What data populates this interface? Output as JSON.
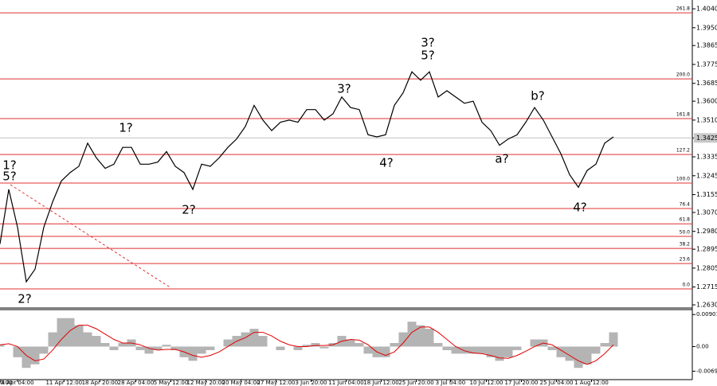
{
  "chart_data": [
    {
      "type": "line",
      "color": "#000000",
      "values": [
        1.292,
        1.318,
        1.3,
        1.274,
        1.28,
        1.3,
        1.312,
        1.322,
        1.326,
        1.329,
        1.34,
        1.333,
        1.328,
        1.33,
        1.338,
        1.338,
        1.33,
        1.33,
        1.331,
        1.336,
        1.329,
        1.326,
        1.318,
        1.33,
        1.329,
        1.333,
        1.338,
        1.342,
        1.348,
        1.358,
        1.351,
        1.346,
        1.35,
        1.351,
        1.35,
        1.356,
        1.356,
        1.351,
        1.354,
        1.362,
        1.357,
        1.356,
        1.344,
        1.343,
        1.344,
        1.358,
        1.364,
        1.374,
        1.37,
        1.374,
        1.362,
        1.365,
        1.362,
        1.359,
        1.36,
        1.35,
        1.346,
        1.339,
        1.342,
        1.344,
        1.35,
        1.357,
        1.351,
        1.343,
        1.335,
        1.325,
        1.319,
        1.327,
        1.33,
        1.34,
        1.343
      ],
      "xlim": [
        0,
        79
      ],
      "ylim": [
        1.2615,
        1.4063
      ],
      "yticks": [
        {
          "value": 1.263,
          "label": "1.2630"
        },
        1.2715,
        1.2805,
        1.2895,
        {
          "value": 1.298,
          "label": "1.2980"
        },
        {
          "value": 1.307,
          "label": "1.3070"
        },
        1.3155,
        1.3245,
        1.3335,
        1.3425,
        {
          "value": 1.351,
          "label": "1.3510"
        },
        {
          "value": 1.36,
          "label": "1.3600"
        },
        1.3685,
        1.3775,
        1.3865,
        {
          "value": 1.395,
          "label": "1.3950"
        },
        {
          "value": 1.404,
          "label": "1.4040"
        }
      ],
      "last_price": 1.3425,
      "level_color": "#e03030",
      "levels": [
        {
          "label": "0.0",
          "value": 1.2706
        },
        {
          "label": "23.6",
          "value": 1.2827
        },
        {
          "label": "38.2",
          "value": 1.2899
        },
        {
          "label": "50.0",
          "value": 1.2956
        },
        {
          "label": "61.8",
          "value": 1.3016
        },
        {
          "label": "76.4",
          "value": 1.3089
        },
        {
          "label": "100.0",
          "value": 1.321
        },
        {
          "label": "127.2",
          "value": 1.3346
        },
        {
          "label": "161.8",
          "value": 1.3517
        },
        {
          "label": "200.0",
          "value": 1.3706
        },
        {
          "label": "261.8",
          "value": 1.4021
        }
      ],
      "annotations": [
        {
          "text": "1?",
          "color": "#1a1ab0"
        },
        {
          "text": "5?",
          "color": "#d02020"
        },
        {
          "text": "2?",
          "color": "#1a1ab0"
        },
        {
          "text": "1?",
          "color": "#d02020"
        },
        {
          "text": "2?",
          "color": "#d02020"
        },
        {
          "text": "3?",
          "color": "#d02020"
        },
        {
          "text": "4?",
          "color": "#d02020"
        },
        {
          "text": "3?",
          "color": "#1a1ab0"
        },
        {
          "text": "5?",
          "color": "#d02020"
        },
        {
          "text": "a?",
          "color": "#d02020"
        },
        {
          "text": "b?",
          "color": "#d02020"
        },
        {
          "text": "4?",
          "color": "#1a1ab0"
        }
      ]
    },
    {
      "type": "macd",
      "color": "#b4b4b4",
      "signal_color": "#e00000",
      "values": [
        0.0005,
        0,
        -0.003,
        -0.006,
        -0.005,
        -0.002,
        0.004,
        0.008,
        0.008,
        0.006,
        0.004,
        0.003,
        0.001,
        -0.001,
        0.001,
        0.002,
        -0.001,
        -0.002,
        -0.001,
        0.0005,
        -0.001,
        -0.003,
        -0.004,
        -0.002,
        -0.001,
        0,
        0.002,
        0.003,
        0.004,
        0.005,
        0.003,
        0,
        -0.001,
        0,
        -0.001,
        0.0005,
        0.001,
        -0.0005,
        0.001,
        0.003,
        0.002,
        0.001,
        -0.002,
        -0.003,
        -0.003,
        0.001,
        0.004,
        0.007,
        0.006,
        0.005,
        0.001,
        -0.001,
        -0.002,
        -0.002,
        -0.002,
        -0.002,
        -0.003,
        -0.004,
        -0.003,
        -0.001,
        0,
        0.002,
        0.002,
        -0.001,
        -0.003,
        -0.004,
        -0.006,
        -0.005,
        -0.002,
        0.001,
        0.004
      ],
      "signal": [
        0.0005,
        0.0008,
        0,
        -0.0025,
        -0.004,
        -0.0035,
        -0.001,
        0.002,
        0.0045,
        0.006,
        0.006,
        0.005,
        0.0035,
        0.002,
        0.001,
        0.001,
        0.0005,
        -0.0005,
        -0.001,
        -0.0008,
        -0.0008,
        -0.0015,
        -0.0025,
        -0.003,
        -0.0025,
        -0.0015,
        0,
        0.0015,
        0.0025,
        0.004,
        0.004,
        0.003,
        0.0015,
        0.0005,
        0,
        0,
        0.0003,
        0.0003,
        0.0005,
        0.0015,
        0.002,
        0.0018,
        0.0005,
        -0.0015,
        -0.0025,
        -0.0015,
        0.001,
        0.004,
        0.0055,
        0.0055,
        0.004,
        0.002,
        0,
        -0.0012,
        -0.0018,
        -0.002,
        -0.0025,
        -0.0032,
        -0.0033,
        -0.0025,
        -0.0013,
        0,
        0.001,
        0.0005,
        -0.001,
        -0.0025,
        -0.004,
        -0.005,
        -0.004,
        -0.002,
        0.0005
      ],
      "xlim": [
        0,
        79
      ],
      "ylim": [
        -0.0093,
        0.0104
      ],
      "yticks": [
        0.00901,
        {
          "value": 0,
          "label": "0.00"
        },
        -0.00692
      ],
      "xticks": [
        {
          "value": 0,
          "label": "0:00"
        },
        {
          "value": 2,
          "label": "4 Apr 04:00"
        },
        {
          "value": 7.3,
          "label": "11 Apr 12:00"
        },
        {
          "value": 11.4,
          "label": "18 Apr 20:00"
        },
        {
          "value": 15.5,
          "label": "28 Apr 04:00"
        },
        {
          "value": 19.5,
          "label": "5 May 12:00"
        },
        {
          "value": 23.5,
          "label": "12 May 20:00"
        },
        {
          "value": 27.5,
          "label": "20 May 04:00"
        },
        {
          "value": 31.5,
          "label": "27 May 12:00"
        },
        {
          "value": 35.5,
          "label": "3 Jun 20:00"
        },
        {
          "value": 39.5,
          "label": "11 Jun 04:00"
        },
        {
          "value": 43.5,
          "label": "18 Jun 12:00"
        },
        {
          "value": 47.5,
          "label": "25 Jun 20:00"
        },
        {
          "value": 51.4,
          "label": "3 Jul 04:00"
        },
        {
          "value": 55.5,
          "label": "10 Jul 12:00"
        },
        {
          "value": 59.5,
          "label": "17 Jul 20:00"
        },
        {
          "value": 63.5,
          "label": "25 Jul 04:00"
        },
        {
          "value": 67.5,
          "label": "1 Aug 12:00"
        }
      ]
    }
  ]
}
